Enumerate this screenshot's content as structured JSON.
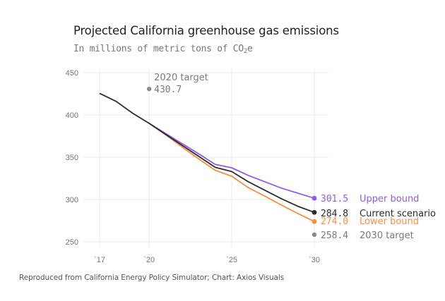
{
  "chart_data": {
    "type": "line",
    "title": "Projected California greenhouse gas emissions",
    "subtitle_prefix": "In millions of metric tons of CO",
    "subtitle_sub": "2",
    "subtitle_suffix": "e",
    "xlabel": "",
    "ylabel": "",
    "xlim": [
      2017,
      2030
    ],
    "ylim": [
      250,
      450
    ],
    "grid": true,
    "x_ticks": [
      {
        "value": 2017,
        "label": "`17"
      },
      {
        "value": 2020,
        "label": "`20"
      },
      {
        "value": 2025,
        "label": "`25"
      },
      {
        "value": 2030,
        "label": "`30"
      }
    ],
    "y_ticks": [
      {
        "value": 450,
        "label": "450"
      },
      {
        "value": 400,
        "label": "400"
      },
      {
        "value": 350,
        "label": "350"
      },
      {
        "value": 300,
        "label": "300"
      },
      {
        "value": 250,
        "label": "250"
      }
    ],
    "series": [
      {
        "name": "Upper bound",
        "color": "#8c5cf2",
        "end_label": "301.5",
        "x": [
          2020,
          2021,
          2022,
          2023,
          2024,
          2025,
          2026,
          2027,
          2028,
          2029,
          2030
        ],
        "values": [
          390,
          378,
          366,
          354,
          341.5,
          337.5,
          328.5,
          321,
          313.5,
          307.5,
          301.5
        ]
      },
      {
        "name": "Lower bound",
        "color": "#fb8d3d",
        "end_label": "274.0",
        "x": [
          2020,
          2021,
          2022,
          2023,
          2024,
          2025,
          2026,
          2027,
          2028,
          2029,
          2030
        ],
        "values": [
          390,
          376.5,
          362,
          348,
          334.5,
          327.5,
          314,
          304,
          293.5,
          283.5,
          274.0
        ]
      },
      {
        "name": "Current scenario",
        "color": "#2b2b2b",
        "end_label": "284.8",
        "x": [
          2017,
          2018,
          2019,
          2020,
          2021,
          2022,
          2023,
          2024,
          2025,
          2026,
          2027,
          2028,
          2029,
          2030
        ],
        "values": [
          425.5,
          416,
          402,
          390,
          377,
          364,
          351,
          338,
          333,
          321,
          311,
          301,
          292,
          284.8
        ]
      }
    ],
    "targets": [
      {
        "name": "2020 target",
        "x": 2020,
        "value": 430.7,
        "value_label": "430.7",
        "color": "#8a8a8a"
      },
      {
        "name": "2030 target",
        "x": 2030,
        "value": 258.4,
        "value_label": "258.4",
        "color": "#8a8a8a"
      }
    ],
    "legend_placement": "right-end-labels"
  },
  "source": "Reproduced from California Energy Policy Simulator; Chart: Axios Visuals"
}
